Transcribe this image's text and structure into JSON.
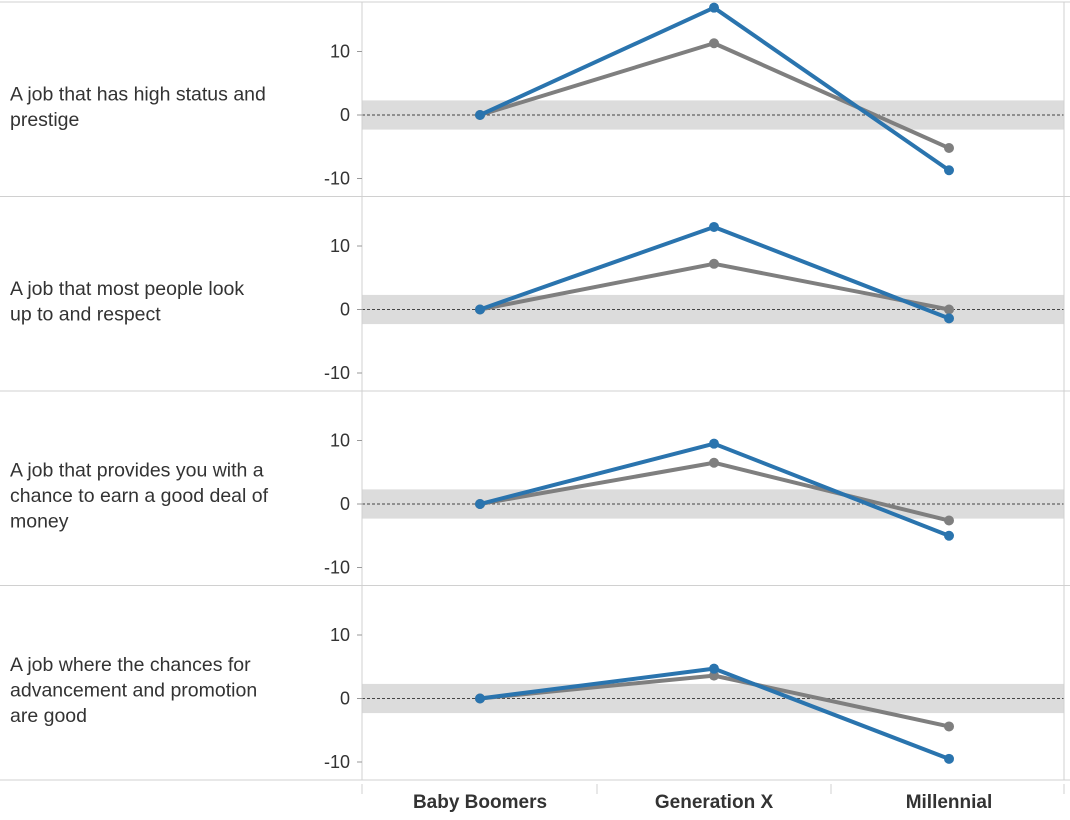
{
  "chart_data": {
    "type": "line",
    "categories": [
      "Baby Boomers",
      "Generation X",
      "Millennial"
    ],
    "y_ticks": [
      10,
      0,
      -10
    ],
    "ylim": [
      -11.5,
      18
    ],
    "grid": false,
    "reference_line": 0,
    "colors": {
      "series_a": "#2a74ae",
      "series_b": "#7f7f7f",
      "band": "#dcdcdc"
    },
    "panels": [
      {
        "label_lines": [
          "A job that has high status and",
          "prestige"
        ],
        "series": [
          {
            "values": [
              0,
              16.9,
              -8.7
            ]
          },
          {
            "values": [
              0,
              11.3,
              -5.2
            ]
          }
        ]
      },
      {
        "label_lines": [
          "A job that most people look",
          "up to and respect"
        ],
        "series": [
          {
            "values": [
              0,
              13.0,
              -1.4
            ]
          },
          {
            "values": [
              0,
              7.2,
              0
            ]
          }
        ]
      },
      {
        "label_lines": [
          "A job that provides you with a",
          "chance to earn a good deal of",
          "money"
        ],
        "series": [
          {
            "values": [
              0,
              9.5,
              -5.0
            ]
          },
          {
            "values": [
              0,
              6.5,
              -2.6
            ]
          }
        ]
      },
      {
        "label_lines": [
          "A job where the chances for",
          "advancement and promotion",
          "are good"
        ],
        "series": [
          {
            "values": [
              0,
              4.7,
              -9.5
            ]
          },
          {
            "values": [
              0,
              3.6,
              -4.4
            ]
          }
        ]
      }
    ]
  }
}
